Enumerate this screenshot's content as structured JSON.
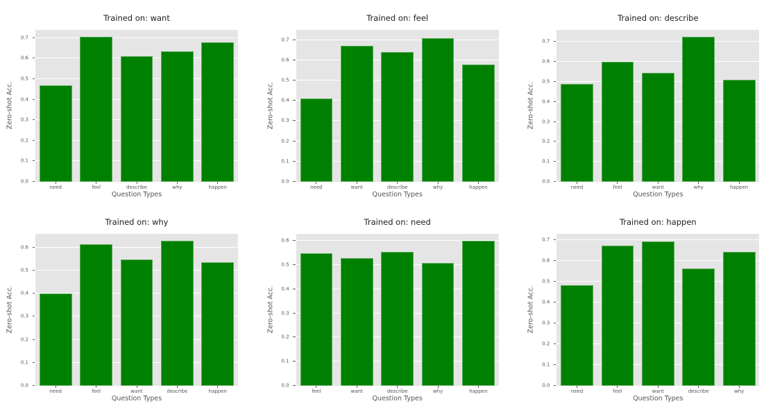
{
  "figure": {
    "background": "#ffffff",
    "axes_background": "#e5e5e5",
    "grid_color": "#ffffff",
    "bar_color": "#008000",
    "tick_text_color": "#555555",
    "title_color": "#1c1c1c",
    "xlabel": "Question Types",
    "ylabel": "Zero-shot Acc.",
    "layout": "2 rows x 3 columns of bar subplots"
  },
  "chart_data": [
    {
      "type": "bar",
      "title": "Trained on: want",
      "categories": [
        "need",
        "feel",
        "describe",
        "why",
        "happen"
      ],
      "values": [
        0.47,
        0.705,
        0.61,
        0.635,
        0.68
      ],
      "xlabel": "Question Types",
      "ylabel": "Zero-shot Acc.",
      "yticks": [
        0.0,
        0.1,
        0.2,
        0.3,
        0.4,
        0.5,
        0.6,
        0.7
      ],
      "ylim": [
        0,
        0.74
      ],
      "grid": true,
      "legend": false
    },
    {
      "type": "bar",
      "title": "Trained on: feel",
      "categories": [
        "need",
        "want",
        "describe",
        "why",
        "happen"
      ],
      "values": [
        0.41,
        0.67,
        0.64,
        0.71,
        0.58
      ],
      "xlabel": "Question Types",
      "ylabel": "Zero-shot Acc.",
      "yticks": [
        0.0,
        0.1,
        0.2,
        0.3,
        0.4,
        0.5,
        0.6,
        0.7
      ],
      "ylim": [
        0,
        0.75
      ],
      "grid": true,
      "legend": false
    },
    {
      "type": "bar",
      "title": "Trained on: describe",
      "categories": [
        "need",
        "feel",
        "want",
        "why",
        "happen"
      ],
      "values": [
        0.49,
        0.6,
        0.545,
        0.725,
        0.51
      ],
      "xlabel": "Question Types",
      "ylabel": "Zero-shot Acc.",
      "yticks": [
        0.0,
        0.1,
        0.2,
        0.3,
        0.4,
        0.5,
        0.6,
        0.7
      ],
      "ylim": [
        0,
        0.76
      ],
      "grid": true,
      "legend": false
    },
    {
      "type": "bar",
      "title": "Trained on: why",
      "categories": [
        "need",
        "feel",
        "want",
        "describe",
        "happen"
      ],
      "values": [
        0.4,
        0.615,
        0.55,
        0.63,
        0.535
      ],
      "xlabel": "Question Types",
      "ylabel": "Zero-shot Acc.",
      "yticks": [
        0.0,
        0.1,
        0.2,
        0.3,
        0.4,
        0.5,
        0.6
      ],
      "ylim": [
        0,
        0.66
      ],
      "grid": true,
      "legend": false
    },
    {
      "type": "bar",
      "title": "Trained on: need",
      "categories": [
        "feel",
        "want",
        "describe",
        "why",
        "happen"
      ],
      "values": [
        0.55,
        0.53,
        0.555,
        0.51,
        0.6
      ],
      "xlabel": "Question Types",
      "ylabel": "Zero-shot Acc.",
      "yticks": [
        0.0,
        0.1,
        0.2,
        0.3,
        0.4,
        0.5,
        0.6
      ],
      "ylim": [
        0,
        0.63
      ],
      "grid": true,
      "legend": false
    },
    {
      "type": "bar",
      "title": "Trained on: happen",
      "categories": [
        "need",
        "feel",
        "want",
        "describe",
        "why"
      ],
      "values": [
        0.485,
        0.675,
        0.695,
        0.565,
        0.645
      ],
      "xlabel": "Question Types",
      "ylabel": "Zero-shot Acc.",
      "yticks": [
        0.0,
        0.1,
        0.2,
        0.3,
        0.4,
        0.5,
        0.6,
        0.7
      ],
      "ylim": [
        0,
        0.73
      ],
      "grid": true,
      "legend": false
    }
  ]
}
